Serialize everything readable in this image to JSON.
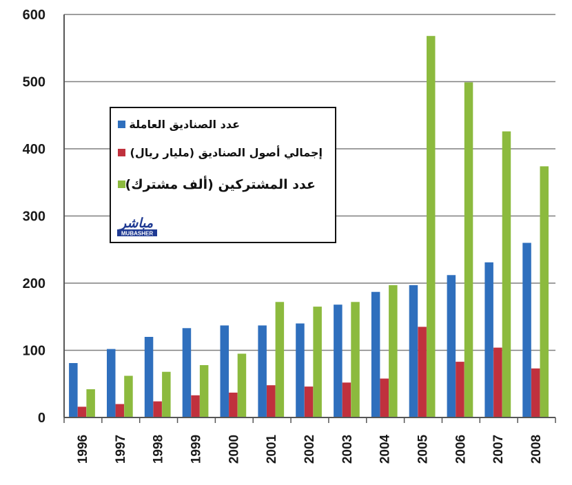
{
  "chart_data": {
    "type": "bar",
    "categories": [
      "1996",
      "1997",
      "1998",
      "1999",
      "2000",
      "2001",
      "2002",
      "2003",
      "2004",
      "2005",
      "2006",
      "2007",
      "2008"
    ],
    "series": [
      {
        "name": "عدد الصناديق العاملة",
        "color": "#2f6fbd",
        "values": [
          81,
          102,
          120,
          133,
          137,
          137,
          140,
          168,
          187,
          197,
          212,
          231,
          260
        ]
      },
      {
        "name": "إجمالي أصول الصناديق (مليار ريال)",
        "color": "#c0313d",
        "values": [
          16,
          20,
          24,
          33,
          37,
          48,
          46,
          52,
          58,
          135,
          83,
          104,
          73
        ]
      },
      {
        "name": "عدد المشتركين (ألف مشترك)",
        "color": "#8cba3e",
        "values": [
          42,
          62,
          68,
          78,
          95,
          172,
          165,
          172,
          197,
          568,
          499,
          426,
          374
        ]
      }
    ],
    "yticks": [
      0,
      100,
      200,
      300,
      400,
      500,
      600
    ],
    "ylim": [
      0,
      600
    ],
    "grid": true,
    "legend": {
      "placement": "upper-left inside plot",
      "logo_text": "مباشر",
      "logo_subtext": "MUBASHER"
    }
  }
}
